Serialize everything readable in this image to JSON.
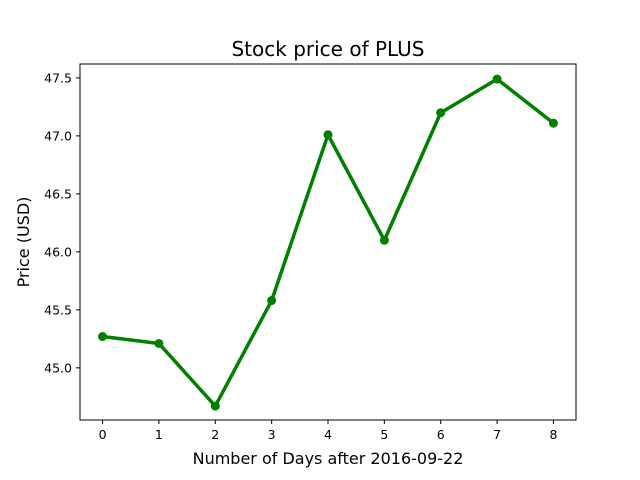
{
  "chart_data": {
    "type": "line",
    "title": "Stock price of PLUS",
    "xlabel": "Number of Days after 2016-09-22",
    "ylabel": "Price (USD)",
    "x": [
      0,
      1,
      2,
      3,
      4,
      5,
      6,
      7,
      8
    ],
    "x_ticks": [
      "0",
      "1",
      "2",
      "3",
      "4",
      "5",
      "6",
      "7",
      "8"
    ],
    "xlim": [
      -0.4,
      8.4
    ],
    "y_ticks": [
      "45.0",
      "45.5",
      "46.0",
      "46.5",
      "47.0",
      "47.5"
    ],
    "ylim": [
      44.55,
      47.62
    ],
    "grid": false,
    "series": [
      {
        "values": [
          45.27,
          45.21,
          44.67,
          45.58,
          47.01,
          46.1,
          47.2,
          47.49,
          47.11
        ],
        "color": "#008000",
        "marker": "circle"
      }
    ]
  }
}
